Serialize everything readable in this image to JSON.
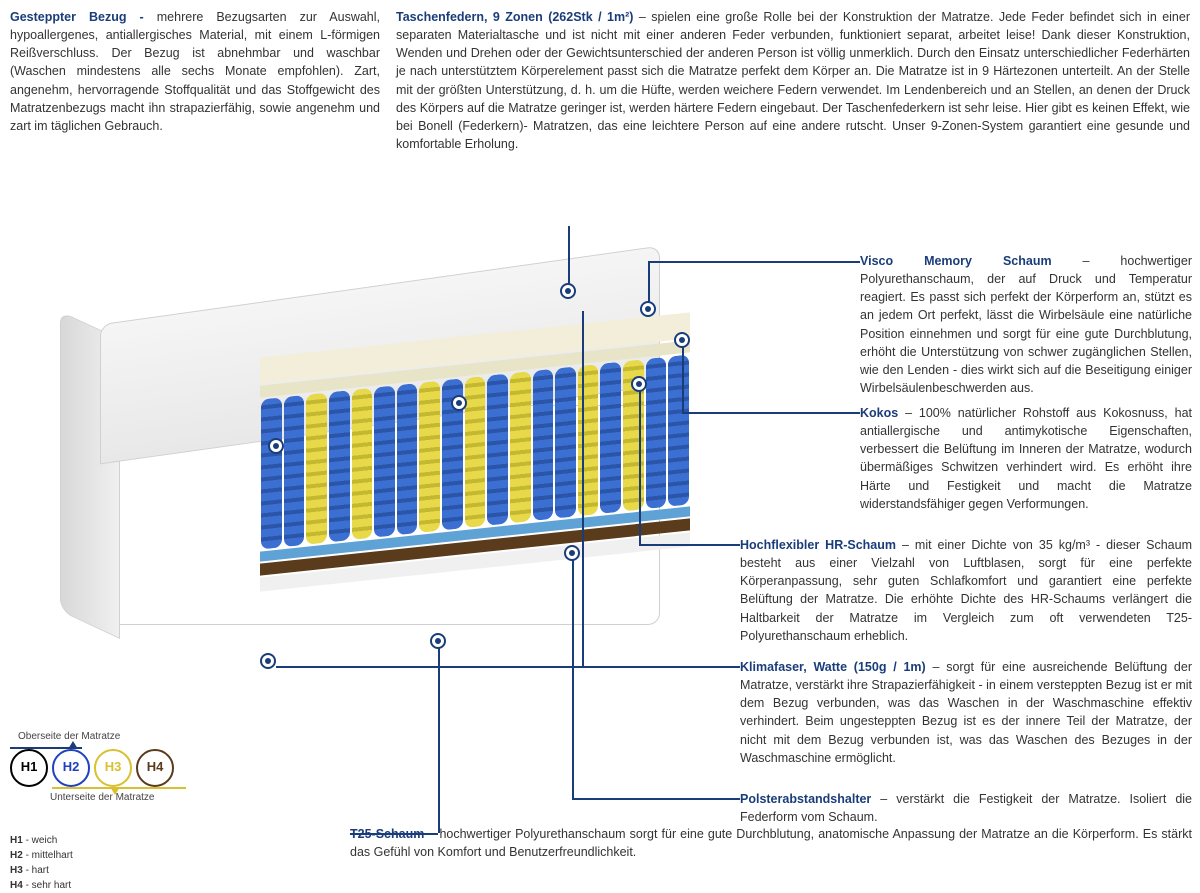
{
  "colors": {
    "title": "#1a3d7a",
    "text": "#333333",
    "marker_border": "#1a3d7a",
    "marker_fill": "#1a3d7a",
    "spring_blue": "#3b6fd1",
    "spring_yellow": "#e8d94a",
    "kokos": "#5a3b1c",
    "hr_foam": "#5fa3d6",
    "foam_cream": "#f2eeda"
  },
  "top": {
    "bezug_title": "Gesteppter Bezug - ",
    "bezug_text": "mehrere Bezugsarten zur Auswahl, hypoallergenes, antiallergisches Material, mit einem L-förmigen Reißverschluss. Der Bezug ist abnehmbar und waschbar (Waschen mindestens alle sechs Monate empfohlen). Zart, angenehm, hervorragende Stoffqualität und das Stoffgewicht des Matratzenbezugs macht ihn strapazierfähig, sowie angenehm und zart im täglichen Gebrauch.",
    "federn_title": "Taschenfedern, 9 Zonen (262Stk / 1m²)",
    "federn_text": " – spielen eine große Rolle bei der Konstruktion der Matratze. Jede Feder befindet sich in einer separaten Materialtasche und ist nicht mit einer anderen Feder verbunden, funktioniert separat, arbeitet leise! Dank dieser Konstruktion, Wenden und Drehen oder der Gewichtsunterschied der anderen Person ist völlig unmerklich. Durch den Einsatz unterschiedlicher Federhärten je nach unterstütztem Körperelement passt sich die Matratze perfekt dem Körper an. Die Matratze ist in 9 Härtezonen unterteilt. An der Stelle mit der größten Unterstützung, d. h. um die Hüfte, werden weichere Federn verwendet. Im Lendenbereich und an Stellen, an denen der Druck des Körpers auf die Matratze geringer ist, werden härtere Federn eingebaut. Der Taschenfederkern ist sehr leise. Hier gibt es keinen Effekt, wie bei Bonell (Federkern)- Matratzen, das eine leichtere Person auf eine andere rutscht. Unser 9-Zonen-System garantiert eine gesunde und komfortable Erholung."
  },
  "sections": {
    "visco": {
      "title": "Visco Memory Schaum",
      "text": " – hochwertiger Polyurethanschaum, der auf Druck und Temperatur reagiert. Es passt sich perfekt der Körperform an, stützt es an jedem Ort perfekt, lässt die Wirbelsäule eine natürliche Position einnehmen und sorgt für eine gute Durchblutung, erhöht die Unterstützung von schwer zugänglichen Stellen, wie den Lenden - dies wirkt sich auf die Beseitigung einiger Wirbelsäulenbeschwerden aus."
    },
    "kokos": {
      "title": "Kokos",
      "text": " – 100% natürlicher Rohstoff aus Kokosnuss, hat antiallergische und antimykotische Eigenschaften, verbessert die Belüftung im Inneren der Matratze, wodurch übermäßiges Schwitzen verhindert wird. Es erhöht ihre Härte und Festigkeit und macht die Matratze widerstandsfähiger gegen Verformungen."
    },
    "hr": {
      "title": "Hochflexibler HR-Schaum",
      "text": " – mit einer Dichte von 35 kg/m³ - dieser Schaum besteht aus einer Vielzahl von Luftblasen, sorgt für eine perfekte Körperanpassung, sehr guten Schlafkomfort und garantiert eine perfekte Belüftung der Matratze. Die erhöhte Dichte des HR-Schaums verlängert die Haltbarkeit der Matratze im Vergleich zum oft verwendeten T25-Polyurethanschaum erheblich."
    },
    "klima": {
      "title": "Klimafaser, Watte (150g / 1m)",
      "text": " – sorgt für eine ausreichende Belüftung der Matratze, verstärkt ihre Strapazierfähigkeit - in einem versteppten Bezug ist er mit dem Bezug verbunden, was das Waschen in der Waschmaschine effektiv verhindert. Beim ungesteppten Bezug ist es der innere Teil der Matratze, der nicht mit dem Bezug verbunden ist, was das Waschen des Bezuges in der Waschmaschine ermöglicht."
    },
    "polster": {
      "title": "Polsterabstandshalter",
      "text": " – verstärkt die Festigkeit der Matratze. Isoliert die Federform vom Schaum."
    },
    "t25": {
      "title": "T25-Schaum",
      "text": " – hochwertiger Polyurethanschaum sorgt für eine gute Durchblutung, anatomische Anpassung der Matratze an die Körperform. Es stärkt das Gefühl von Komfort und Benutzerfreundlichkeit."
    }
  },
  "hardness": {
    "top_label": "Oberseite der Matratze",
    "bottom_label": "Unterseite der Matratze",
    "circles": [
      {
        "label": "H1",
        "color": "#000000"
      },
      {
        "label": "H2",
        "color": "#2040c0"
      },
      {
        "label": "H3",
        "color": "#d8c030"
      },
      {
        "label": "H4",
        "color": "#5a3b1c"
      }
    ],
    "legend": [
      {
        "code": "H1",
        "desc": "weich"
      },
      {
        "code": "H2",
        "desc": "mittelhart"
      },
      {
        "code": "H3",
        "desc": "hart"
      },
      {
        "code": "H4",
        "desc": "sehr hart"
      }
    ]
  },
  "springs_pattern": [
    "b",
    "b",
    "y",
    "b",
    "y",
    "b",
    "b",
    "y",
    "b",
    "y",
    "b",
    "y",
    "b",
    "b",
    "y",
    "b",
    "y",
    "b",
    "b"
  ]
}
